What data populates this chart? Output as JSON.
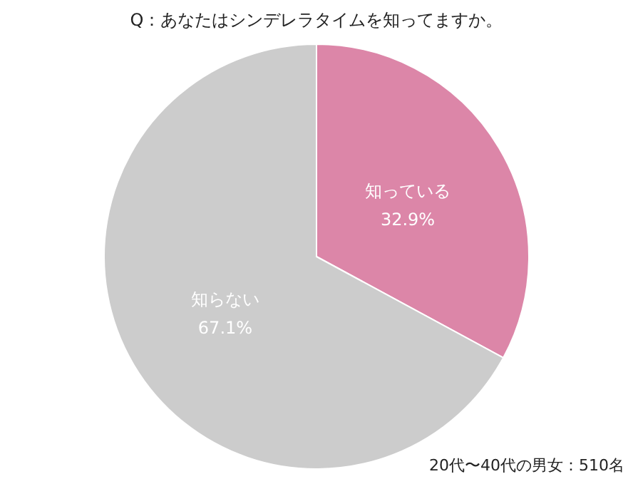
{
  "chart_data": {
    "type": "pie",
    "title": "Q：あなたはシンデレラタイムを知ってますか。",
    "categories": [
      "知っている",
      "知らない"
    ],
    "values": [
      32.9,
      67.1
    ],
    "value_labels": [
      "32.9%",
      "67.1%"
    ],
    "colors": [
      "#dc86a8",
      "#cccccc"
    ],
    "legend": false,
    "annotations": [
      "20代〜40代の男女：510名"
    ]
  }
}
